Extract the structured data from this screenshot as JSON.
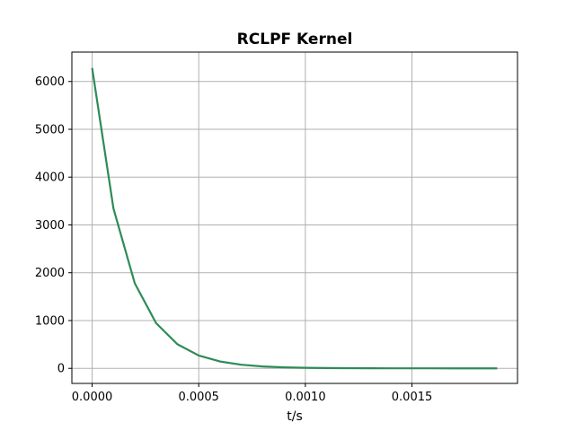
{
  "chart_data": {
    "type": "line",
    "title": "RCLPF Kernel",
    "xlabel": "t/s",
    "ylabel": "",
    "xlim": [
      -9.5e-05,
      0.001995
    ],
    "ylim": [
      -315,
      6615
    ],
    "grid": true,
    "x_ticks": [
      0.0,
      0.0005,
      0.001,
      0.0015
    ],
    "x_tick_labels": [
      "0.0000",
      "0.0005",
      "0.0010",
      "0.0015"
    ],
    "y_ticks": [
      0,
      1000,
      2000,
      3000,
      4000,
      5000,
      6000
    ],
    "y_tick_labels": [
      "0",
      "1000",
      "2000",
      "3000",
      "4000",
      "5000",
      "6000"
    ],
    "series": [
      {
        "color": "#2e8b57",
        "x": [
          0.0,
          0.0001,
          0.0002,
          0.0003,
          0.0004,
          0.0005,
          0.0006,
          0.0007,
          0.0008,
          0.0009,
          0.001,
          0.0011,
          0.0012,
          0.0013,
          0.0014,
          0.0015,
          0.0016,
          0.0017,
          0.0018,
          0.0019
        ],
        "y": [
          6283,
          3343,
          1779,
          946,
          504,
          268,
          143,
          76,
          40,
          21,
          11,
          6,
          3,
          2,
          1,
          0.5,
          0.3,
          0.1,
          0.1,
          0
        ]
      }
    ]
  }
}
